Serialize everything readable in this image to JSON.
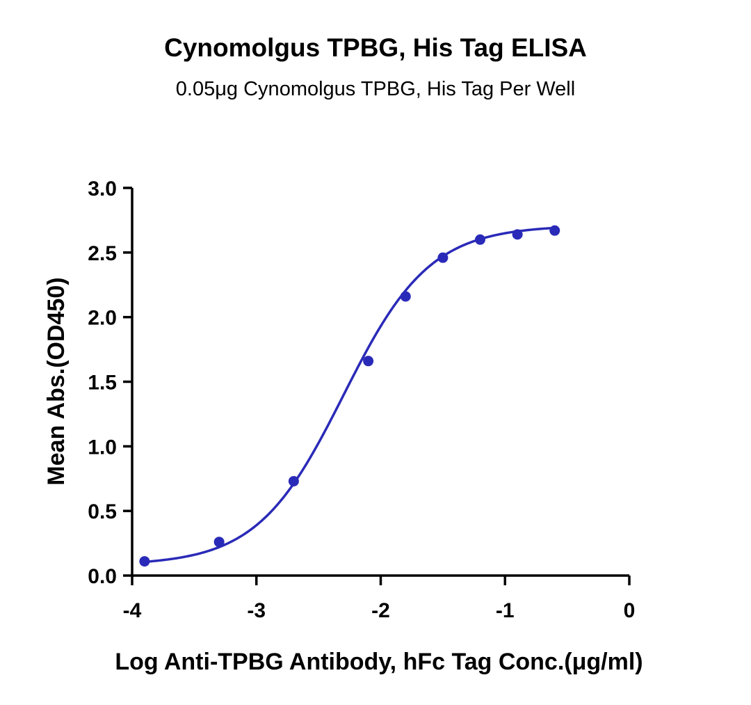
{
  "chart_data": {
    "type": "scatter",
    "title": "Cynomolgus TPBG, His Tag ELISA",
    "subtitle": "0.05μg Cynomolgus TPBG, His Tag Per Well",
    "xlabel": "Log Anti-TPBG Antibody, hFc Tag Conc.(μg/ml)",
    "ylabel": "Mean Abs.(OD450)",
    "xlim": [
      -4,
      0
    ],
    "ylim": [
      0,
      3
    ],
    "x_ticks": [
      "-4",
      "-3",
      "-2",
      "-1",
      "0"
    ],
    "y_ticks": [
      "0.0",
      "0.5",
      "1.0",
      "1.5",
      "2.0",
      "2.5",
      "3.0"
    ],
    "grid": false,
    "series_color": "#2a2ab8",
    "points": [
      {
        "x": -3.9,
        "y": 0.11
      },
      {
        "x": -3.3,
        "y": 0.26
      },
      {
        "x": -2.7,
        "y": 0.73
      },
      {
        "x": -2.1,
        "y": 1.66
      },
      {
        "x": -1.8,
        "y": 2.16
      },
      {
        "x": -1.5,
        "y": 2.46
      },
      {
        "x": -1.2,
        "y": 2.6
      },
      {
        "x": -0.9,
        "y": 2.64
      },
      {
        "x": -0.6,
        "y": 2.67
      }
    ],
    "fit_curve": {
      "model": "4PL",
      "bottom": 0.08,
      "top": 2.71,
      "log_ec50": -2.3,
      "hill_slope": 1.25,
      "x_range": [
        -3.9,
        -0.6
      ]
    }
  }
}
